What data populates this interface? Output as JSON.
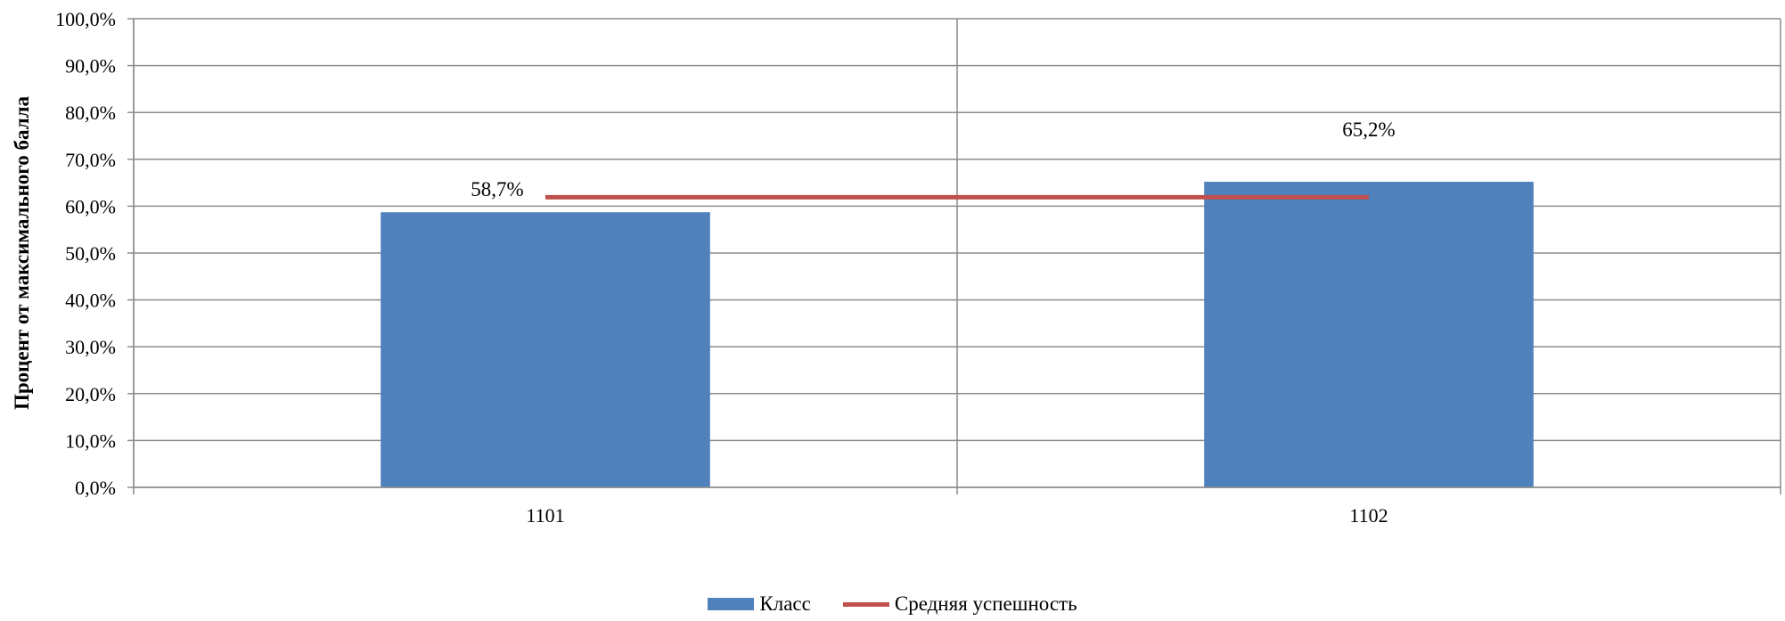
{
  "chart_data": {
    "type": "bar",
    "categories": [
      "1101",
      "1102"
    ],
    "series": [
      {
        "name": "Класс",
        "type": "bar",
        "values": [
          58.7,
          65.2
        ],
        "labels": [
          "58,7%",
          "65,2%"
        ],
        "color": "#4F81BD"
      },
      {
        "name": "Средняя успешность",
        "type": "line",
        "values": [
          61.9,
          61.9
        ],
        "color": "#C0504D"
      }
    ],
    "ylabel": "Процент от максимального балла",
    "xlabel": "",
    "ylim": [
      0,
      100
    ],
    "yticks": [
      0,
      10,
      20,
      30,
      40,
      50,
      60,
      70,
      80,
      90,
      100
    ],
    "ytick_labels": [
      "0,0%",
      "10,0%",
      "20,0%",
      "30,0%",
      "40,0%",
      "50,0%",
      "60,0%",
      "70,0%",
      "80,0%",
      "90,0%",
      "100,0%"
    ],
    "grid": true,
    "legend_position": "bottom"
  }
}
